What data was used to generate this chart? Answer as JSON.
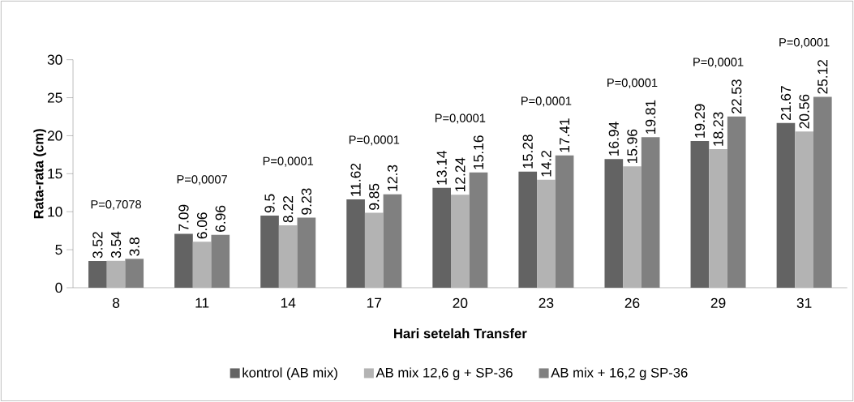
{
  "chart_data": {
    "type": "bar",
    "xlabel": "Hari setelah Transfer",
    "ylabel": "Rata-rata (cm)",
    "categories": [
      "8",
      "11",
      "14",
      "17",
      "20",
      "23",
      "26",
      "29",
      "31"
    ],
    "series": [
      {
        "name": "kontrol (AB mix)",
        "color": "#636363",
        "values": [
          3.52,
          7.09,
          9.5,
          11.62,
          13.14,
          15.28,
          16.94,
          19.29,
          21.67
        ]
      },
      {
        "name": "AB mix 12,6 g + SP-36",
        "color": "#b3b3b3",
        "values": [
          3.54,
          6.06,
          8.22,
          9.85,
          12.24,
          14.2,
          15.96,
          18.23,
          20.56
        ]
      },
      {
        "name": "AB mix + 16,2 g SP-36",
        "color": "#808080",
        "values": [
          3.8,
          6.96,
          9.23,
          12.3,
          15.16,
          17.41,
          19.81,
          22.53,
          25.12
        ]
      }
    ],
    "ylim": [
      0,
      30
    ],
    "yticks": [
      0,
      5,
      10,
      15,
      20,
      25,
      30
    ],
    "data_labels": true,
    "grid": false,
    "legend": "bottom",
    "annotations": [
      "P=0,7078",
      "P=0,0007",
      "P=0,0001",
      "P=0,0001",
      "P=0,0001",
      "P=0,0001",
      "P=0,0001",
      "P=0,0001",
      "P=0,0001"
    ]
  }
}
